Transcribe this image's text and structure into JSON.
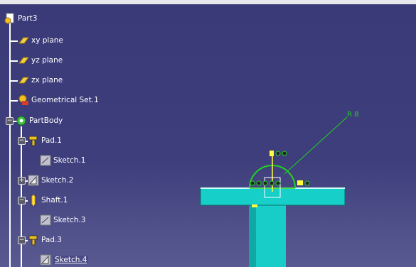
{
  "tree": {
    "root": "Part3",
    "planes": [
      "xy plane",
      "yz plane",
      "zx plane"
    ],
    "geoset": "Geometrical Set.1",
    "body": "PartBody",
    "features": [
      {
        "label": "Pad.1",
        "child": "Sketch.1"
      },
      {
        "label": "Sketch.2"
      },
      {
        "label": "Shaft.1",
        "child": "Sketch.3"
      },
      {
        "label": "Pad.3",
        "child": "Sketch.4"
      }
    ]
  },
  "viewport": {
    "radius_label": "R 8",
    "colors": {
      "background": "#3e3e7c",
      "part": "#16cfc9",
      "sketch_arc": "#20d020",
      "dimension": "#20d020",
      "axis": "#ffff40"
    }
  }
}
